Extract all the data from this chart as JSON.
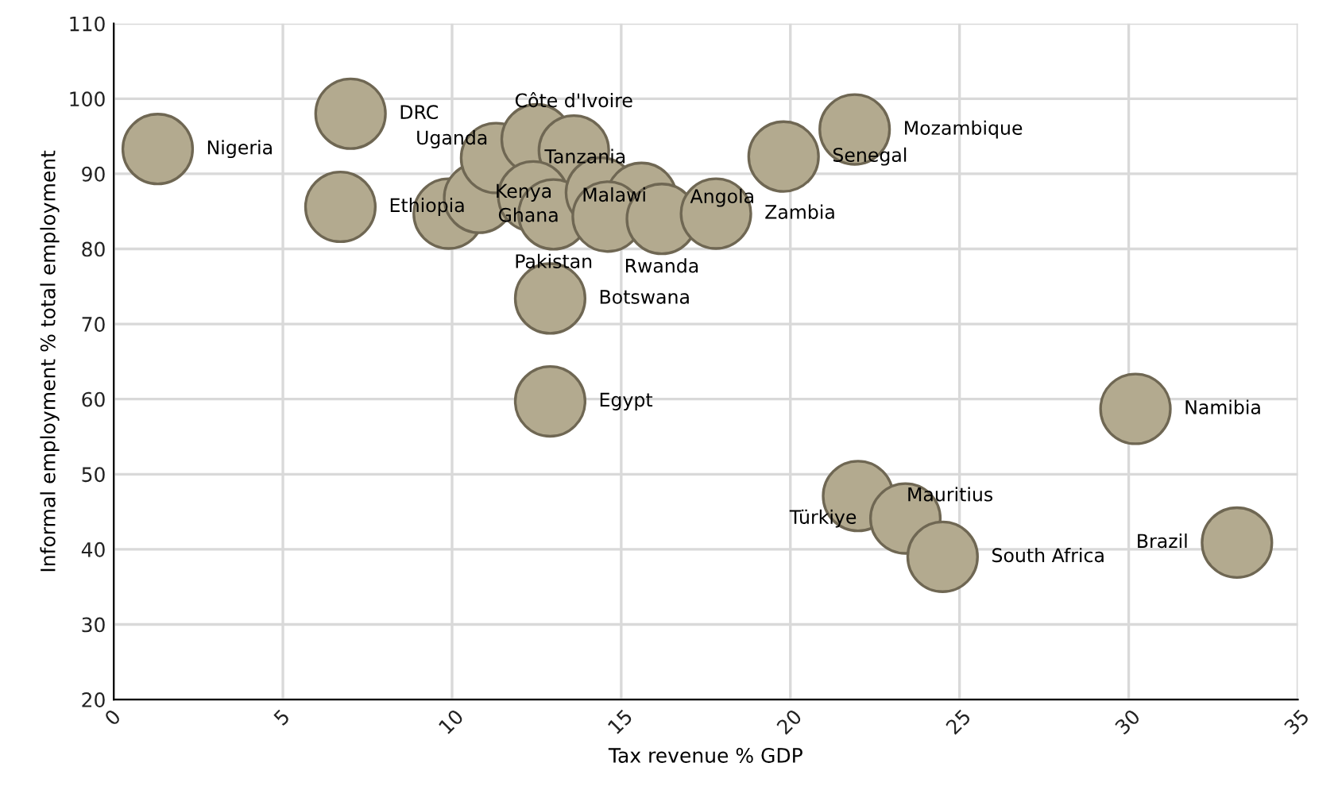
{
  "chart_data": {
    "type": "scatter",
    "xlabel": "Tax revenue % GDP",
    "ylabel": "Informal employment % total employment",
    "x": [
      1.3,
      7.0,
      6.7,
      9.9,
      10.8,
      11.3,
      12.5,
      13.6,
      12.4,
      13.0,
      14.4,
      15.6,
      14.6,
      16.2,
      17.8,
      19.8,
      21.9,
      12.9,
      12.9,
      30.2,
      22.0,
      23.4,
      24.5,
      33.2
    ],
    "values": [
      93.3,
      98.0,
      85.6,
      84.7,
      86.8,
      92.1,
      94.6,
      93.1,
      87.0,
      84.6,
      87.5,
      86.8,
      84.3,
      84.0,
      84.7,
      92.3,
      95.9,
      73.4,
      59.7,
      58.7,
      47.1,
      44.1,
      39.0,
      40.9
    ],
    "value_labels": [
      "Nigeria",
      "DRC",
      "Ethiopia",
      null,
      null,
      "Tanzania",
      "Uganda",
      "Côte d'Ivoire",
      "Malawi",
      "Pakistan",
      "Kenya",
      "Angola",
      "Ghana",
      "Rwanda",
      "Zambia",
      "Senegal",
      "Mozambique",
      "Botswana",
      "Egypt",
      "Namibia",
      "Mauritius",
      "Türkiye",
      "South Africa",
      "Brazil"
    ],
    "color": "#b3aa8f",
    "marker": "circle",
    "xlim": [
      0,
      35
    ],
    "xticks": [
      0,
      5,
      10,
      15,
      20,
      25,
      30,
      35
    ],
    "ylim": [
      20,
      110
    ],
    "yticks": [
      20,
      30,
      40,
      50,
      60,
      70,
      80,
      90,
      100,
      110
    ],
    "grid": true
  }
}
